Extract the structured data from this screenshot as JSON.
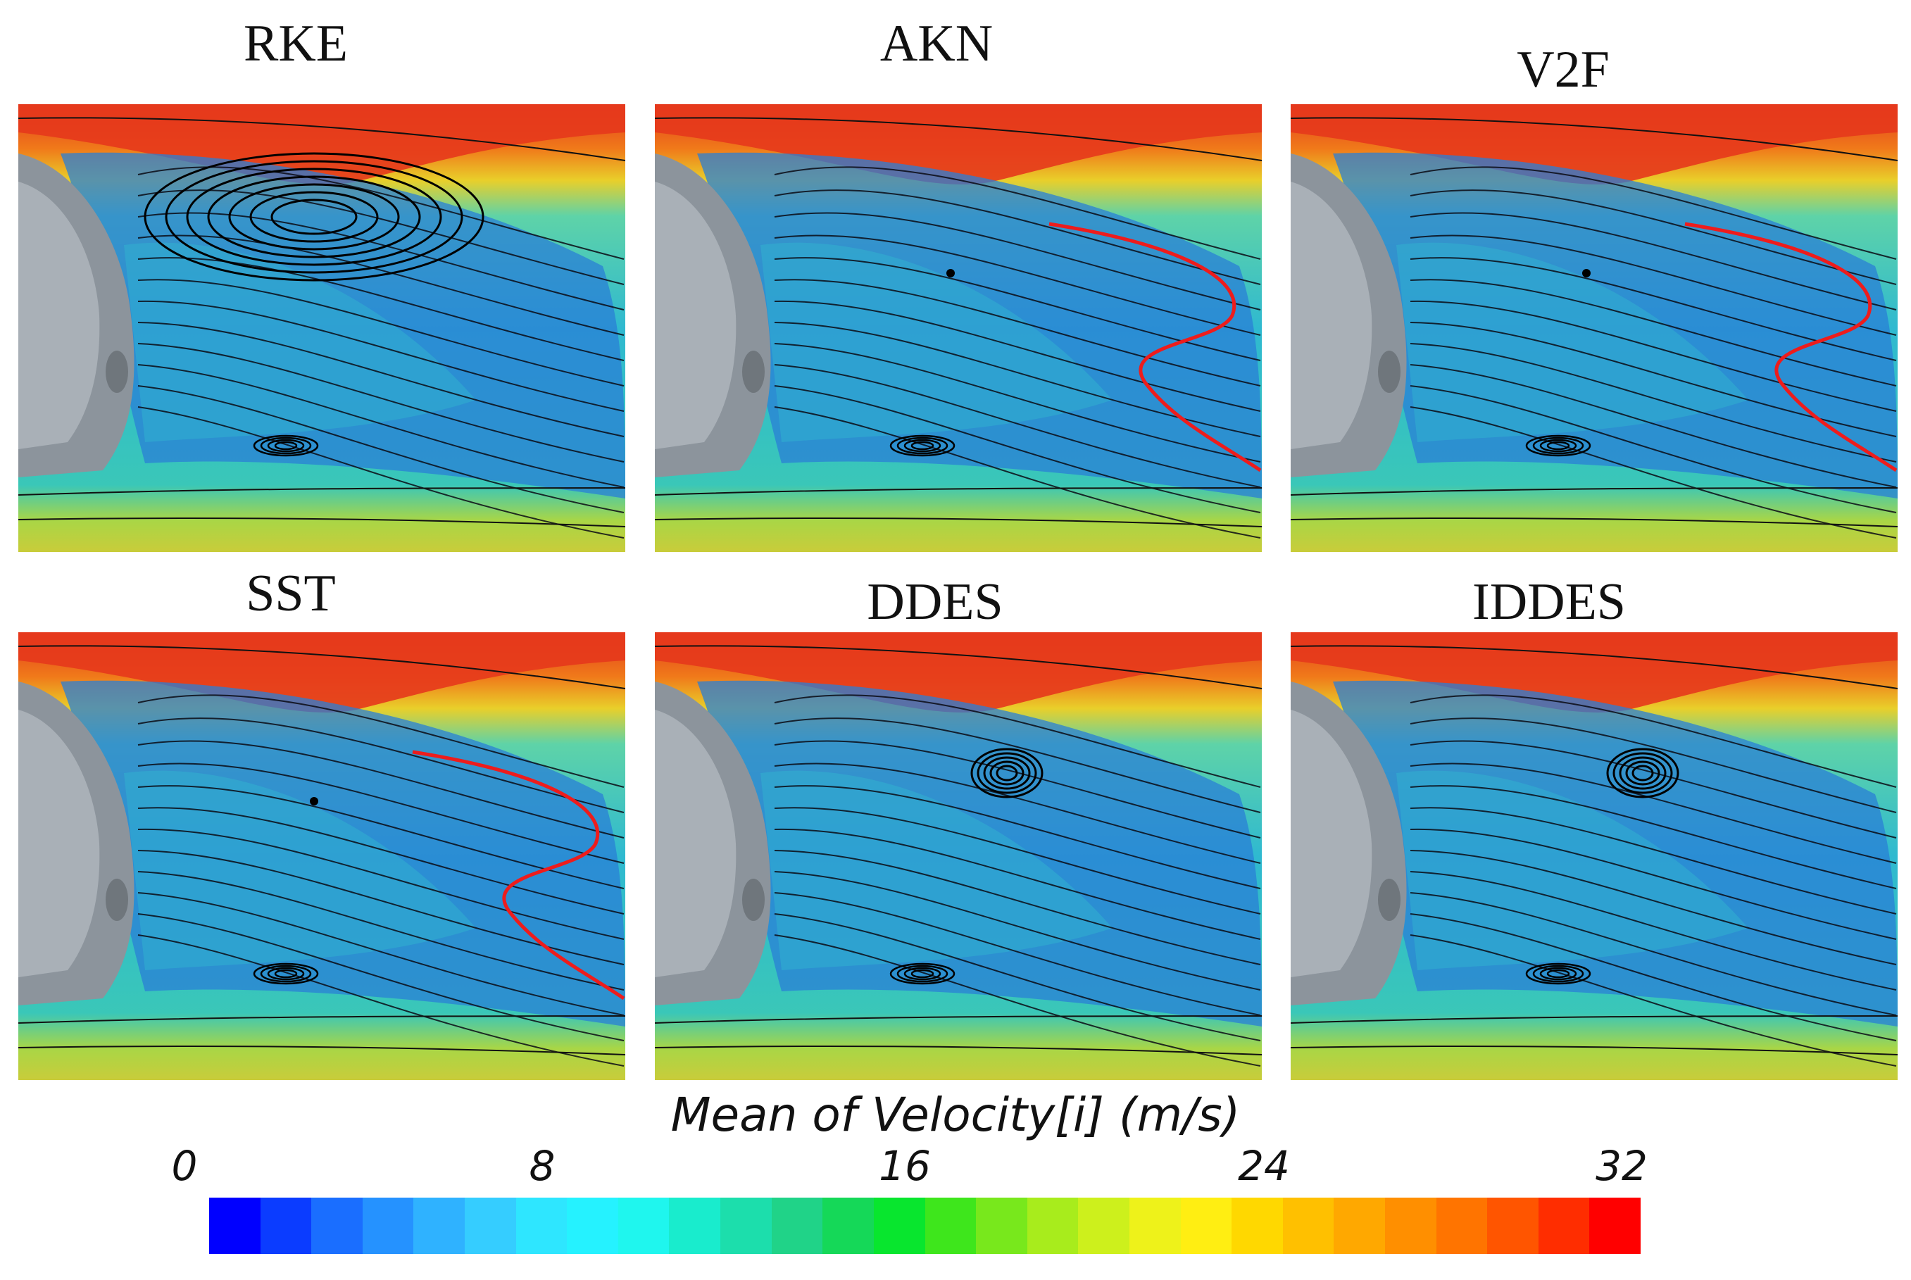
{
  "figure": {
    "panels": [
      {
        "label": "RKE",
        "vortex_upper": "large",
        "has_profile_line": false
      },
      {
        "label": "AKN",
        "vortex_upper": "node",
        "has_profile_line": true
      },
      {
        "label": "V2F",
        "vortex_upper": "node",
        "has_profile_line": true
      },
      {
        "label": "SST",
        "vortex_upper": "node",
        "has_profile_line": true
      },
      {
        "label": "DDES",
        "vortex_upper": "small",
        "has_profile_line": false
      },
      {
        "label": "IDDES",
        "vortex_upper": "small",
        "has_profile_line": false
      }
    ]
  },
  "colorbar": {
    "title": "Mean of Velocity[i] (m/s)",
    "ticks": [
      "0",
      "8",
      "16",
      "24",
      "32"
    ],
    "range": [
      0,
      32
    ],
    "colors": [
      "#0000ff",
      "#0b3cff",
      "#1a6eff",
      "#2592ff",
      "#2fb2ff",
      "#35cdff",
      "#2ee6ff",
      "#25f2ff",
      "#1ff6ee",
      "#19eccd",
      "#1cdeac",
      "#20d388",
      "#15d858",
      "#08e62e",
      "#3ee61c",
      "#78e81c",
      "#a8ec1c",
      "#cdf01c",
      "#eef21a",
      "#ffee12",
      "#ffd800",
      "#ffc000",
      "#ffa800",
      "#ff8f00",
      "#ff7400",
      "#ff5500",
      "#ff2d00",
      "#ff0000"
    ],
    "colors_note": "colorbar segments from blue (0) to red (32)"
  }
}
